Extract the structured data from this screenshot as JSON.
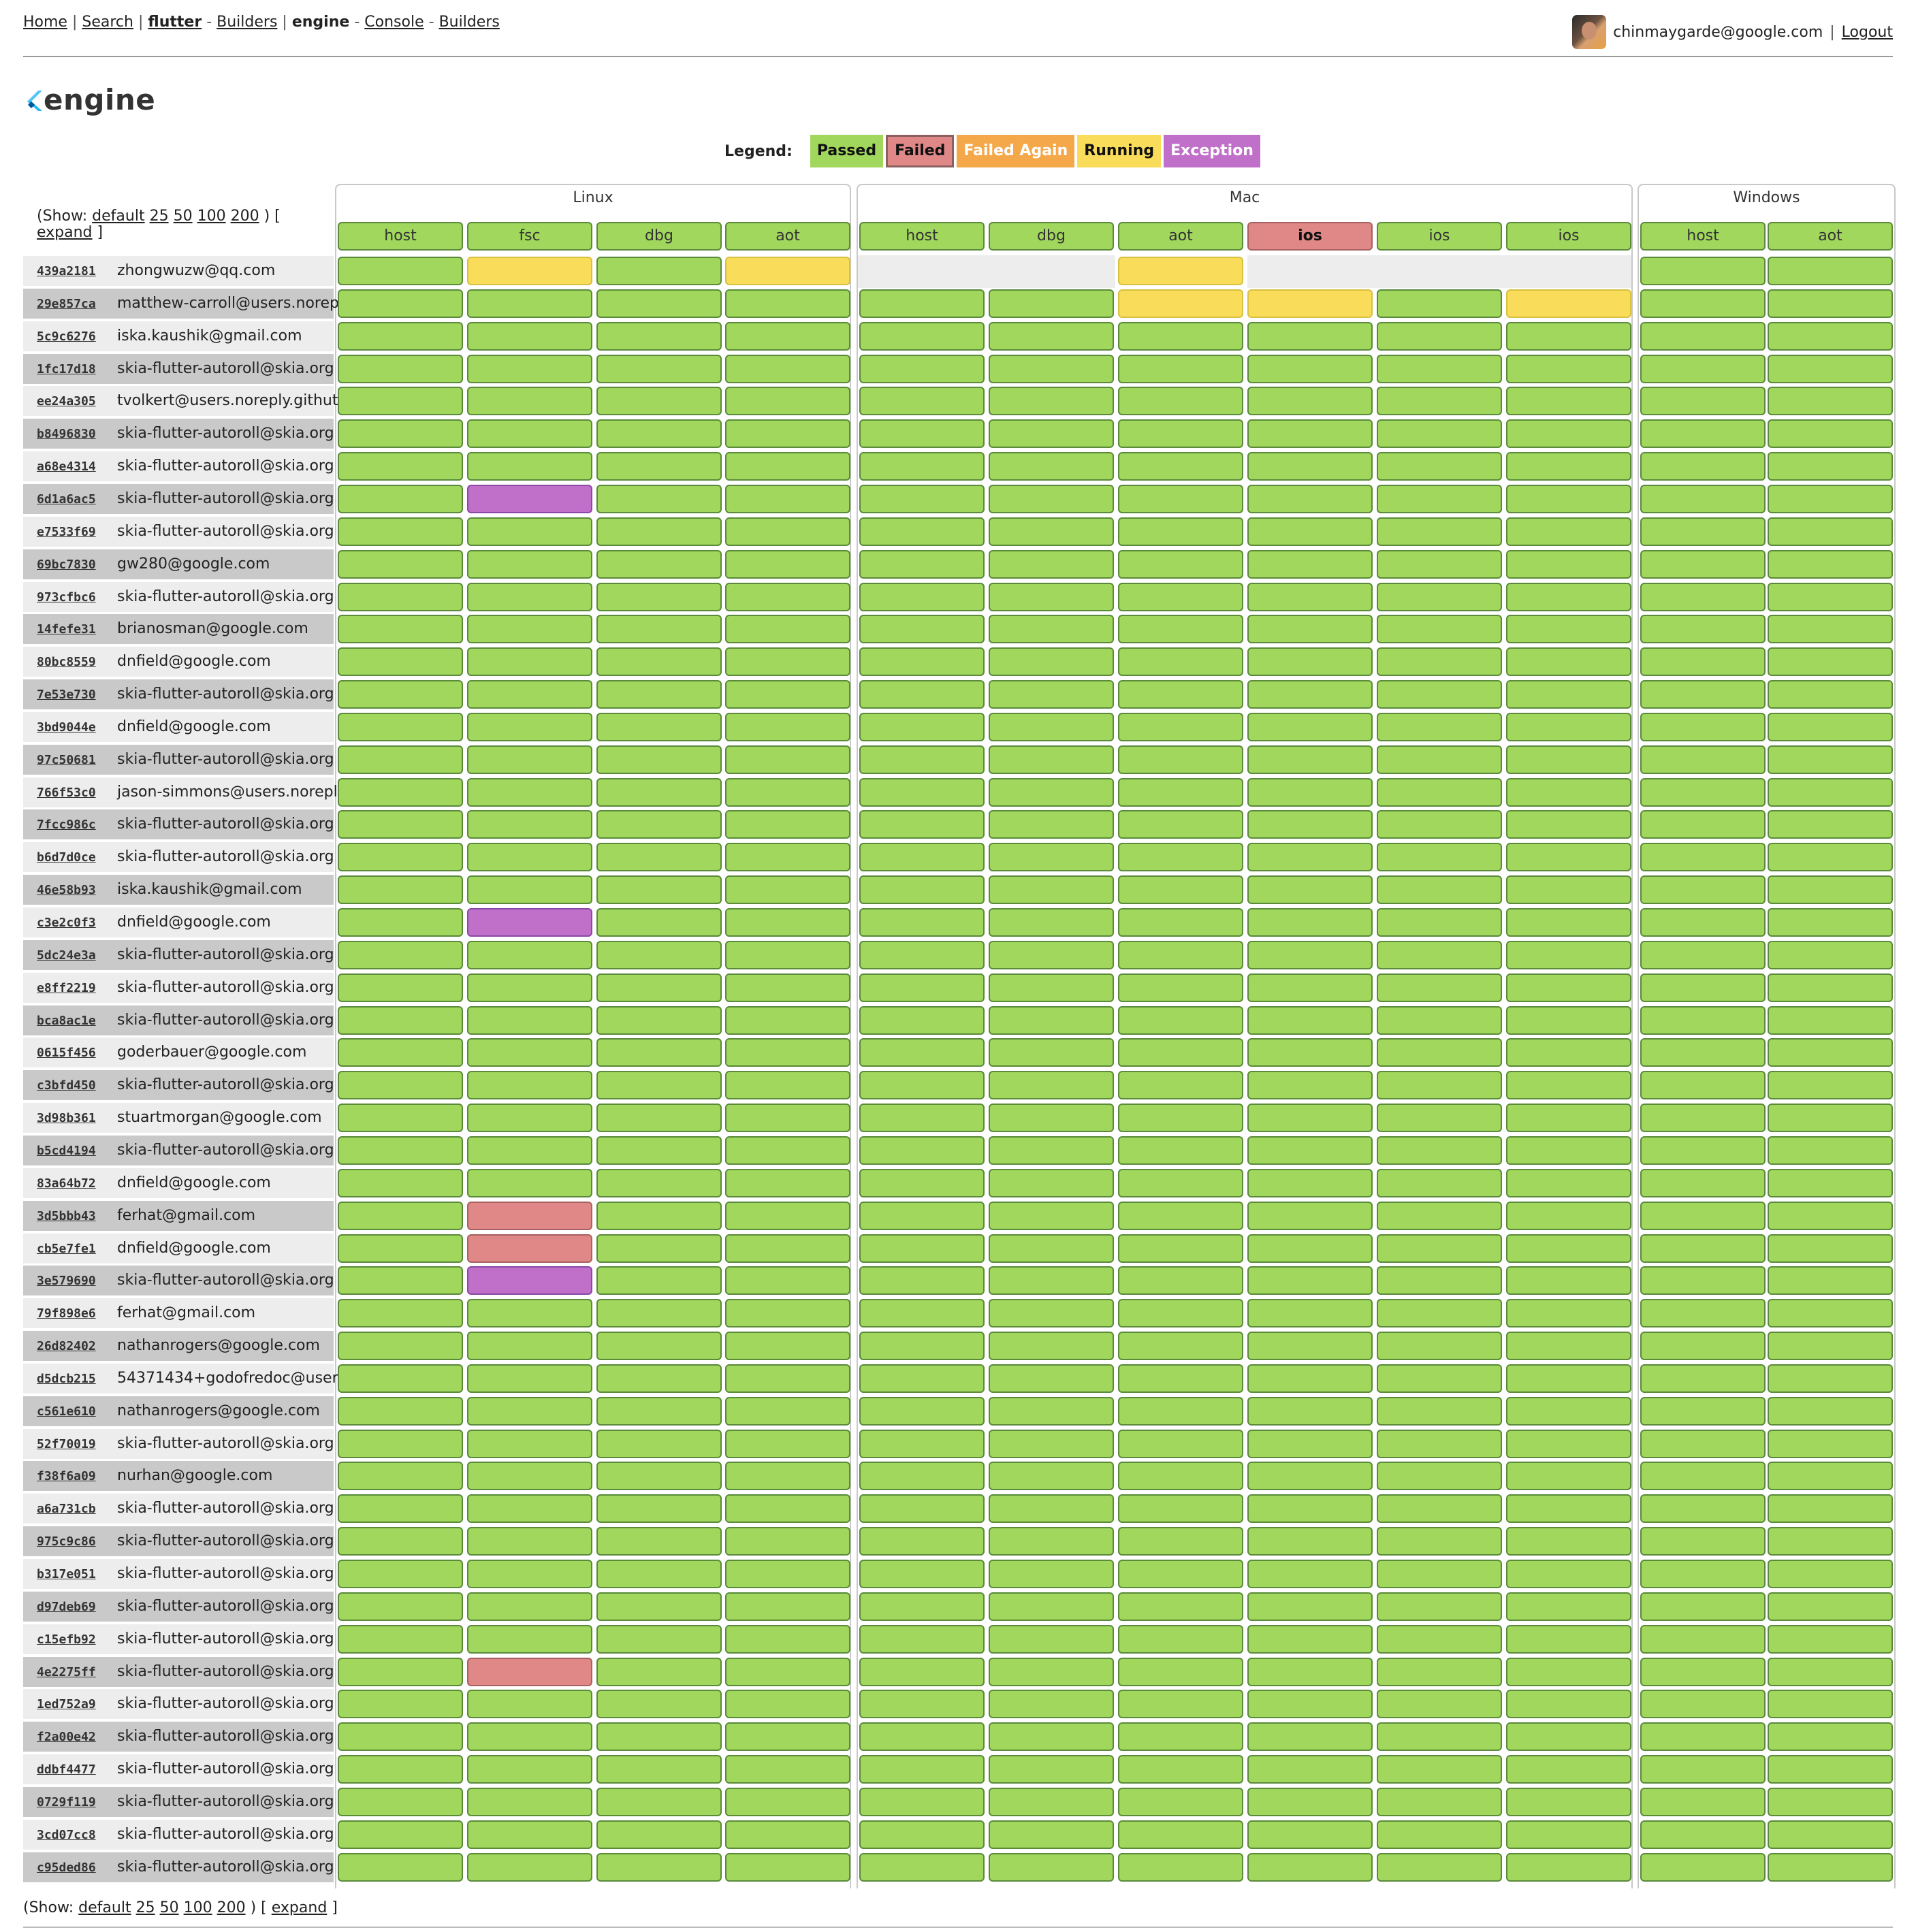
{
  "nav": {
    "home": "Home",
    "search": "Search",
    "flutter": "flutter",
    "builders1": "Builders",
    "engine": "engine",
    "console": "Console",
    "builders2": "Builders"
  },
  "user": {
    "email": "chinmaygarde@google.com",
    "logout": "Logout"
  },
  "title": "engine",
  "legend": {
    "label": "Legend:",
    "items": [
      {
        "label": "Passed",
        "color": "#a0d75c"
      },
      {
        "label": "Failed",
        "color": "#e08888"
      },
      {
        "label": "Failed Again",
        "color": "#f5a84a"
      },
      {
        "label": "Running",
        "color": "#f8dc5a"
      },
      {
        "label": "Exception",
        "color": "#c070c8"
      }
    ]
  },
  "show": {
    "prefix": "(Show:",
    "options": [
      "default",
      "25",
      "50",
      "100",
      "200"
    ],
    "close": ")",
    "bracket_open": "[",
    "expand": "expand",
    "bracket_close": "]"
  },
  "status_colors": {
    "G": "#a0d75c",
    "Y": "#f8dc5a",
    "P": "#c070c8",
    "F": "#e08888"
  },
  "groups": [
    {
      "name": "Linux",
      "tasks": [
        {
          "name": "host",
          "status": "G"
        },
        {
          "name": "fsc",
          "status": "G"
        },
        {
          "name": "dbg",
          "status": "G"
        },
        {
          "name": "aot",
          "status": "G"
        }
      ]
    },
    {
      "name": "Mac",
      "tasks": [
        {
          "name": "host",
          "status": "G"
        },
        {
          "name": "dbg",
          "status": "G"
        },
        {
          "name": "aot",
          "status": "G"
        },
        {
          "name": "ios",
          "status": "F"
        },
        {
          "name": "ios",
          "status": "G"
        },
        {
          "name": "ios",
          "status": "G"
        }
      ]
    },
    {
      "name": "Windows",
      "tasks": [
        {
          "name": "host",
          "status": "G"
        },
        {
          "name": "aot",
          "status": "G"
        }
      ]
    }
  ],
  "commits": [
    {
      "sha": "439a2181",
      "author": "zhongwuzw@qq.com",
      "cells": "GYGY..Y...GG"
    },
    {
      "sha": "29e857ca",
      "author": "matthew-carroll@users.norep",
      "cells": "GGGGGGYYGYGG"
    },
    {
      "sha": "5c9c6276",
      "author": "iska.kaushik@gmail.com",
      "cells": "GGGGGGGGGGGG"
    },
    {
      "sha": "1fc17d18",
      "author": "skia-flutter-autoroll@skia.org",
      "cells": "GGGGGGGGGGGG"
    },
    {
      "sha": "ee24a305",
      "author": "tvolkert@users.noreply.githut",
      "cells": "GGGGGGGGGGGG"
    },
    {
      "sha": "b8496830",
      "author": "skia-flutter-autoroll@skia.org",
      "cells": "GGGGGGGGGGGG"
    },
    {
      "sha": "a68e4314",
      "author": "skia-flutter-autoroll@skia.org",
      "cells": "GGGGGGGGGGGG"
    },
    {
      "sha": "6d1a6ac5",
      "author": "skia-flutter-autoroll@skia.org",
      "cells": "GPGGGGGGGGGG"
    },
    {
      "sha": "e7533f69",
      "author": "skia-flutter-autoroll@skia.org",
      "cells": "GGGGGGGGGGGG"
    },
    {
      "sha": "69bc7830",
      "author": "gw280@google.com",
      "cells": "GGGGGGGGGGGG"
    },
    {
      "sha": "973cfbc6",
      "author": "skia-flutter-autoroll@skia.org",
      "cells": "GGGGGGGGGGGG"
    },
    {
      "sha": "14fefe31",
      "author": "brianosman@google.com",
      "cells": "GGGGGGGGGGGG"
    },
    {
      "sha": "80bc8559",
      "author": "dnfield@google.com",
      "cells": "GGGGGGGGGGGG"
    },
    {
      "sha": "7e53e730",
      "author": "skia-flutter-autoroll@skia.org",
      "cells": "GGGGGGGGGGGG"
    },
    {
      "sha": "3bd9044e",
      "author": "dnfield@google.com",
      "cells": "GGGGGGGGGGGG"
    },
    {
      "sha": "97c50681",
      "author": "skia-flutter-autoroll@skia.org",
      "cells": "GGGGGGGGGGGG"
    },
    {
      "sha": "766f53c0",
      "author": "jason-simmons@users.norepl",
      "cells": "GGGGGGGGGGGG"
    },
    {
      "sha": "7fcc986c",
      "author": "skia-flutter-autoroll@skia.org",
      "cells": "GGGGGGGGGGGG"
    },
    {
      "sha": "b6d7d0ce",
      "author": "skia-flutter-autoroll@skia.org",
      "cells": "GGGGGGGGGGGG"
    },
    {
      "sha": "46e58b93",
      "author": "iska.kaushik@gmail.com",
      "cells": "GGGGGGGGGGGG"
    },
    {
      "sha": "c3e2c0f3",
      "author": "dnfield@google.com",
      "cells": "GPGGGGGGGGGG"
    },
    {
      "sha": "5dc24e3a",
      "author": "skia-flutter-autoroll@skia.org",
      "cells": "GGGGGGGGGGGG"
    },
    {
      "sha": "e8ff2219",
      "author": "skia-flutter-autoroll@skia.org",
      "cells": "GGGGGGGGGGGG"
    },
    {
      "sha": "bca8ac1e",
      "author": "skia-flutter-autoroll@skia.org",
      "cells": "GGGGGGGGGGGG"
    },
    {
      "sha": "0615f456",
      "author": "goderbauer@google.com",
      "cells": "GGGGGGGGGGGG"
    },
    {
      "sha": "c3bfd450",
      "author": "skia-flutter-autoroll@skia.org",
      "cells": "GGGGGGGGGGGG"
    },
    {
      "sha": "3d98b361",
      "author": "stuartmorgan@google.com",
      "cells": "GGGGGGGGGGGG"
    },
    {
      "sha": "b5cd4194",
      "author": "skia-flutter-autoroll@skia.org",
      "cells": "GGGGGGGGGGGG"
    },
    {
      "sha": "83a64b72",
      "author": "dnfield@google.com",
      "cells": "GGGGGGGGGGGG"
    },
    {
      "sha": "3d5bbb43",
      "author": "ferhat@gmail.com",
      "cells": "GFGGGGGGGGGG"
    },
    {
      "sha": "cb5e7fe1",
      "author": "dnfield@google.com",
      "cells": "GFGGGGGGGGGG"
    },
    {
      "sha": "3e579690",
      "author": "skia-flutter-autoroll@skia.org",
      "cells": "GPGGGGGGGGGG"
    },
    {
      "sha": "79f898e6",
      "author": "ferhat@gmail.com",
      "cells": "GGGGGGGGGGGG"
    },
    {
      "sha": "26d82402",
      "author": "nathanrogers@google.com",
      "cells": "GGGGGGGGGGGG"
    },
    {
      "sha": "d5dcb215",
      "author": "54371434+godofredoc@users",
      "cells": "GGGGGGGGGGGG"
    },
    {
      "sha": "c561e610",
      "author": "nathanrogers@google.com",
      "cells": "GGGGGGGGGGGG"
    },
    {
      "sha": "52f70019",
      "author": "skia-flutter-autoroll@skia.org",
      "cells": "GGGGGGGGGGGG"
    },
    {
      "sha": "f38f6a09",
      "author": "nurhan@google.com",
      "cells": "GGGGGGGGGGGG"
    },
    {
      "sha": "a6a731cb",
      "author": "skia-flutter-autoroll@skia.org",
      "cells": "GGGGGGGGGGGG"
    },
    {
      "sha": "975c9c86",
      "author": "skia-flutter-autoroll@skia.org",
      "cells": "GGGGGGGGGGGG"
    },
    {
      "sha": "b317e051",
      "author": "skia-flutter-autoroll@skia.org",
      "cells": "GGGGGGGGGGGG"
    },
    {
      "sha": "d97deb69",
      "author": "skia-flutter-autoroll@skia.org",
      "cells": "GGGGGGGGGGGG"
    },
    {
      "sha": "c15efb92",
      "author": "skia-flutter-autoroll@skia.org",
      "cells": "GGGGGGGGGGGG"
    },
    {
      "sha": "4e2275ff",
      "author": "skia-flutter-autoroll@skia.org",
      "cells": "GFGGGGGGGGGG"
    },
    {
      "sha": "1ed752a9",
      "author": "skia-flutter-autoroll@skia.org",
      "cells": "GGGGGGGGGGGG"
    },
    {
      "sha": "f2a00e42",
      "author": "skia-flutter-autoroll@skia.org",
      "cells": "GGGGGGGGGGGG"
    },
    {
      "sha": "ddbf4477",
      "author": "skia-flutter-autoroll@skia.org",
      "cells": "GGGGGGGGGGGG"
    },
    {
      "sha": "0729f119",
      "author": "skia-flutter-autoroll@skia.org",
      "cells": "GGGGGGGGGGGG"
    },
    {
      "sha": "3cd07cc8",
      "author": "skia-flutter-autoroll@skia.org",
      "cells": "GGGGGGGGGGGG"
    },
    {
      "sha": "c95ded86",
      "author": "skia-flutter-autoroll@skia.org",
      "cells": "GGGGGGGGGGGG"
    }
  ]
}
